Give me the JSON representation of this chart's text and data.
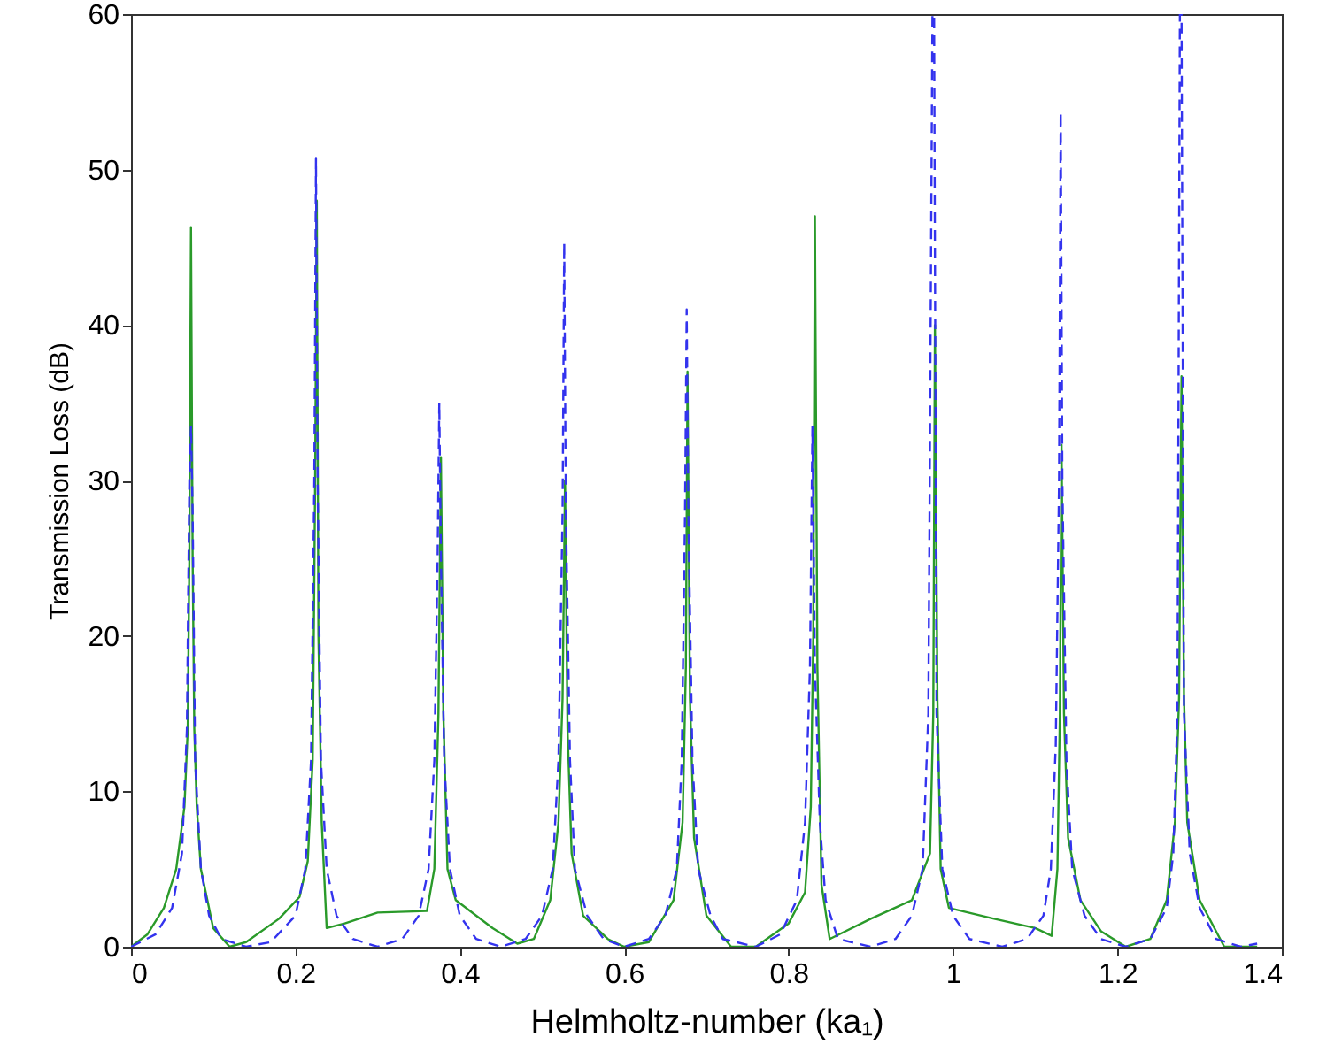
{
  "chart_data": {
    "type": "line",
    "xlabel": "Helmholtz-number (ka₁)",
    "ylabel": "Transmission Loss (dB)",
    "xlim": [
      0,
      1.4
    ],
    "xticks": [
      0,
      0.2,
      0.4,
      0.6,
      0.8,
      1,
      1.2,
      1.4
    ],
    "ylim": [
      0,
      60
    ],
    "yticks": [
      0,
      10,
      20,
      30,
      40,
      50,
      60
    ],
    "grid": false,
    "series": [
      {
        "color": "#2a9a2a",
        "line_style": "solid",
        "x": [
          0,
          0.02,
          0.04,
          0.055,
          0.065,
          0.069,
          0.071,
          0.073,
          0.075,
          0.077,
          0.08,
          0.085,
          0.1,
          0.12,
          0.14,
          0.18,
          0.205,
          0.215,
          0.221,
          0.224,
          0.226,
          0.228,
          0.232,
          0.238,
          0.26,
          0.3,
          0.36,
          0.369,
          0.374,
          0.377,
          0.38,
          0.385,
          0.395,
          0.44,
          0.47,
          0.49,
          0.51,
          0.52,
          0.525,
          0.528,
          0.531,
          0.536,
          0.55,
          0.58,
          0.6,
          0.63,
          0.66,
          0.671,
          0.675,
          0.677,
          0.68,
          0.685,
          0.7,
          0.73,
          0.76,
          0.8,
          0.82,
          0.827,
          0.83,
          0.832,
          0.835,
          0.84,
          0.85,
          0.9,
          0.95,
          0.972,
          0.976,
          0.978,
          0.981,
          0.985,
          0.995,
          1.05,
          1.1,
          1.12,
          1.127,
          1.13,
          1.132,
          1.135,
          1.14,
          1.155,
          1.18,
          1.21,
          1.24,
          1.26,
          1.27,
          1.275,
          1.278,
          1.281,
          1.285,
          1.3,
          1.33,
          1.37
        ],
        "values": [
          0,
          0.8,
          2.5,
          5,
          9,
          14,
          25,
          46.3,
          25,
          14,
          9,
          5,
          1.2,
          0,
          0.3,
          1.8,
          3.2,
          5.5,
          12,
          30,
          48,
          20,
          8,
          1.2,
          1.5,
          2.2,
          2.3,
          5,
          15,
          31.5,
          15,
          5,
          3,
          1.2,
          0.2,
          0.5,
          3,
          8,
          16,
          30,
          14,
          6,
          2,
          0.5,
          0,
          0.3,
          3,
          8,
          18,
          37,
          16,
          7,
          2,
          0,
          0,
          1.5,
          3.5,
          9,
          20,
          47,
          18,
          4,
          0.5,
          1.8,
          3,
          6,
          15,
          40,
          16,
          5,
          2.5,
          1.8,
          1.2,
          0.7,
          5,
          15,
          32.3,
          15,
          7,
          3,
          1,
          0,
          0.5,
          3,
          8,
          16,
          36.7,
          16,
          8,
          3,
          0,
          0
        ]
      },
      {
        "color": "#3333ee",
        "line_style": "dashed",
        "x": [
          0,
          0.03,
          0.05,
          0.062,
          0.068,
          0.071,
          0.073,
          0.075,
          0.078,
          0.085,
          0.095,
          0.11,
          0.14,
          0.17,
          0.2,
          0.212,
          0.219,
          0.223,
          0.225,
          0.227,
          0.231,
          0.238,
          0.25,
          0.27,
          0.3,
          0.33,
          0.35,
          0.362,
          0.369,
          0.373,
          0.375,
          0.377,
          0.381,
          0.388,
          0.4,
          0.42,
          0.45,
          0.48,
          0.5,
          0.513,
          0.52,
          0.525,
          0.527,
          0.529,
          0.534,
          0.54,
          0.555,
          0.575,
          0.6,
          0.63,
          0.65,
          0.664,
          0.67,
          0.674,
          0.676,
          0.678,
          0.683,
          0.69,
          0.705,
          0.72,
          0.76,
          0.79,
          0.81,
          0.82,
          0.826,
          0.829,
          0.832,
          0.838,
          0.845,
          0.86,
          0.9,
          0.93,
          0.95,
          0.963,
          0.97,
          0.975,
          0.977,
          0.98,
          0.987,
          1,
          1.02,
          1.06,
          1.09,
          1.11,
          1.119,
          1.125,
          1.129,
          1.131,
          1.133,
          1.138,
          1.145,
          1.16,
          1.18,
          1.21,
          1.24,
          1.26,
          1.268,
          1.273,
          1.276,
          1.278,
          1.281,
          1.288,
          1.3,
          1.32,
          1.35,
          1.37
        ],
        "values": [
          0,
          0.8,
          2.5,
          6,
          14,
          30,
          33.5,
          28,
          12,
          5,
          2,
          0.5,
          0,
          0.3,
          2,
          5,
          12,
          30,
          50.7,
          30,
          12,
          5,
          2,
          0.5,
          0,
          0.5,
          2,
          5,
          12,
          25,
          35,
          25,
          12,
          5,
          2,
          0.5,
          0,
          0.5,
          2,
          5,
          12,
          28,
          45.3,
          28,
          12,
          5,
          2,
          0.5,
          0,
          0.5,
          2,
          5,
          12,
          28,
          41,
          28,
          12,
          5,
          2,
          0.5,
          0,
          0.8,
          3,
          8,
          18,
          33.5,
          18,
          8,
          3,
          0.5,
          0,
          0.5,
          2,
          5,
          15,
          60,
          60,
          15,
          5,
          2,
          0.5,
          0,
          0.5,
          2,
          5,
          13,
          30,
          53.7,
          30,
          12,
          5,
          2,
          0.5,
          0,
          0.5,
          2.5,
          6,
          15,
          60,
          60,
          15,
          6,
          2.5,
          0.5,
          0,
          0.2
        ]
      }
    ]
  }
}
